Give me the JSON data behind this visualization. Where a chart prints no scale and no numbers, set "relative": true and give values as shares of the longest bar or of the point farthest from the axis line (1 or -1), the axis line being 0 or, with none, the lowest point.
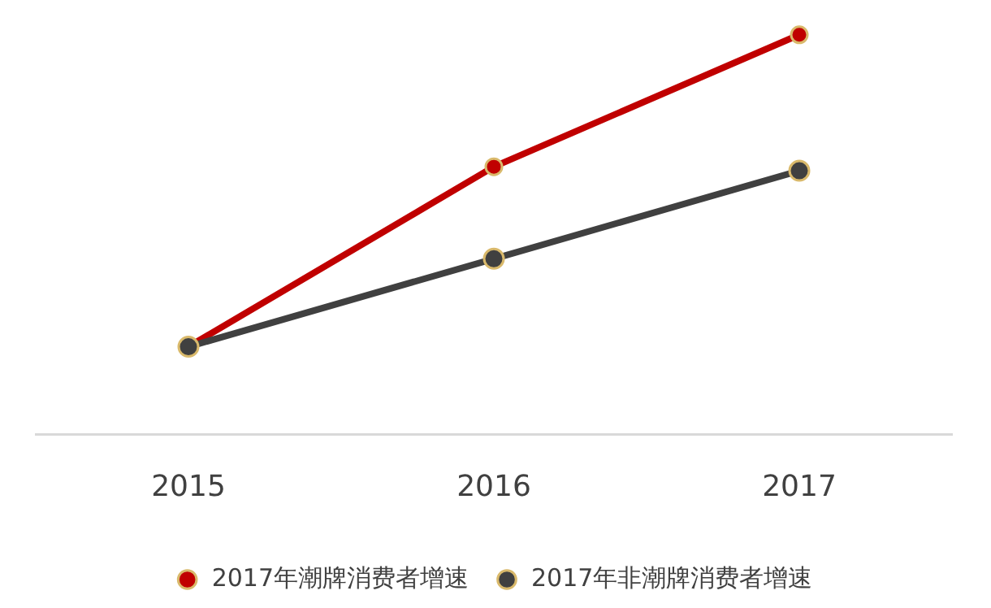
{
  "chart_data": {
    "type": "line",
    "relative": true,
    "categories": [
      "2015",
      "2016",
      "2017"
    ],
    "series": [
      {
        "name": "2017年潮牌消费者增速",
        "color": "#c00000",
        "values": [
          0.22,
          0.67,
          1
        ]
      },
      {
        "name": "2017年非潮牌消费者增速",
        "color": "#404040",
        "values": [
          0.22,
          0.44,
          0.66
        ]
      }
    ],
    "legend": "bottom",
    "marker": "circle"
  }
}
